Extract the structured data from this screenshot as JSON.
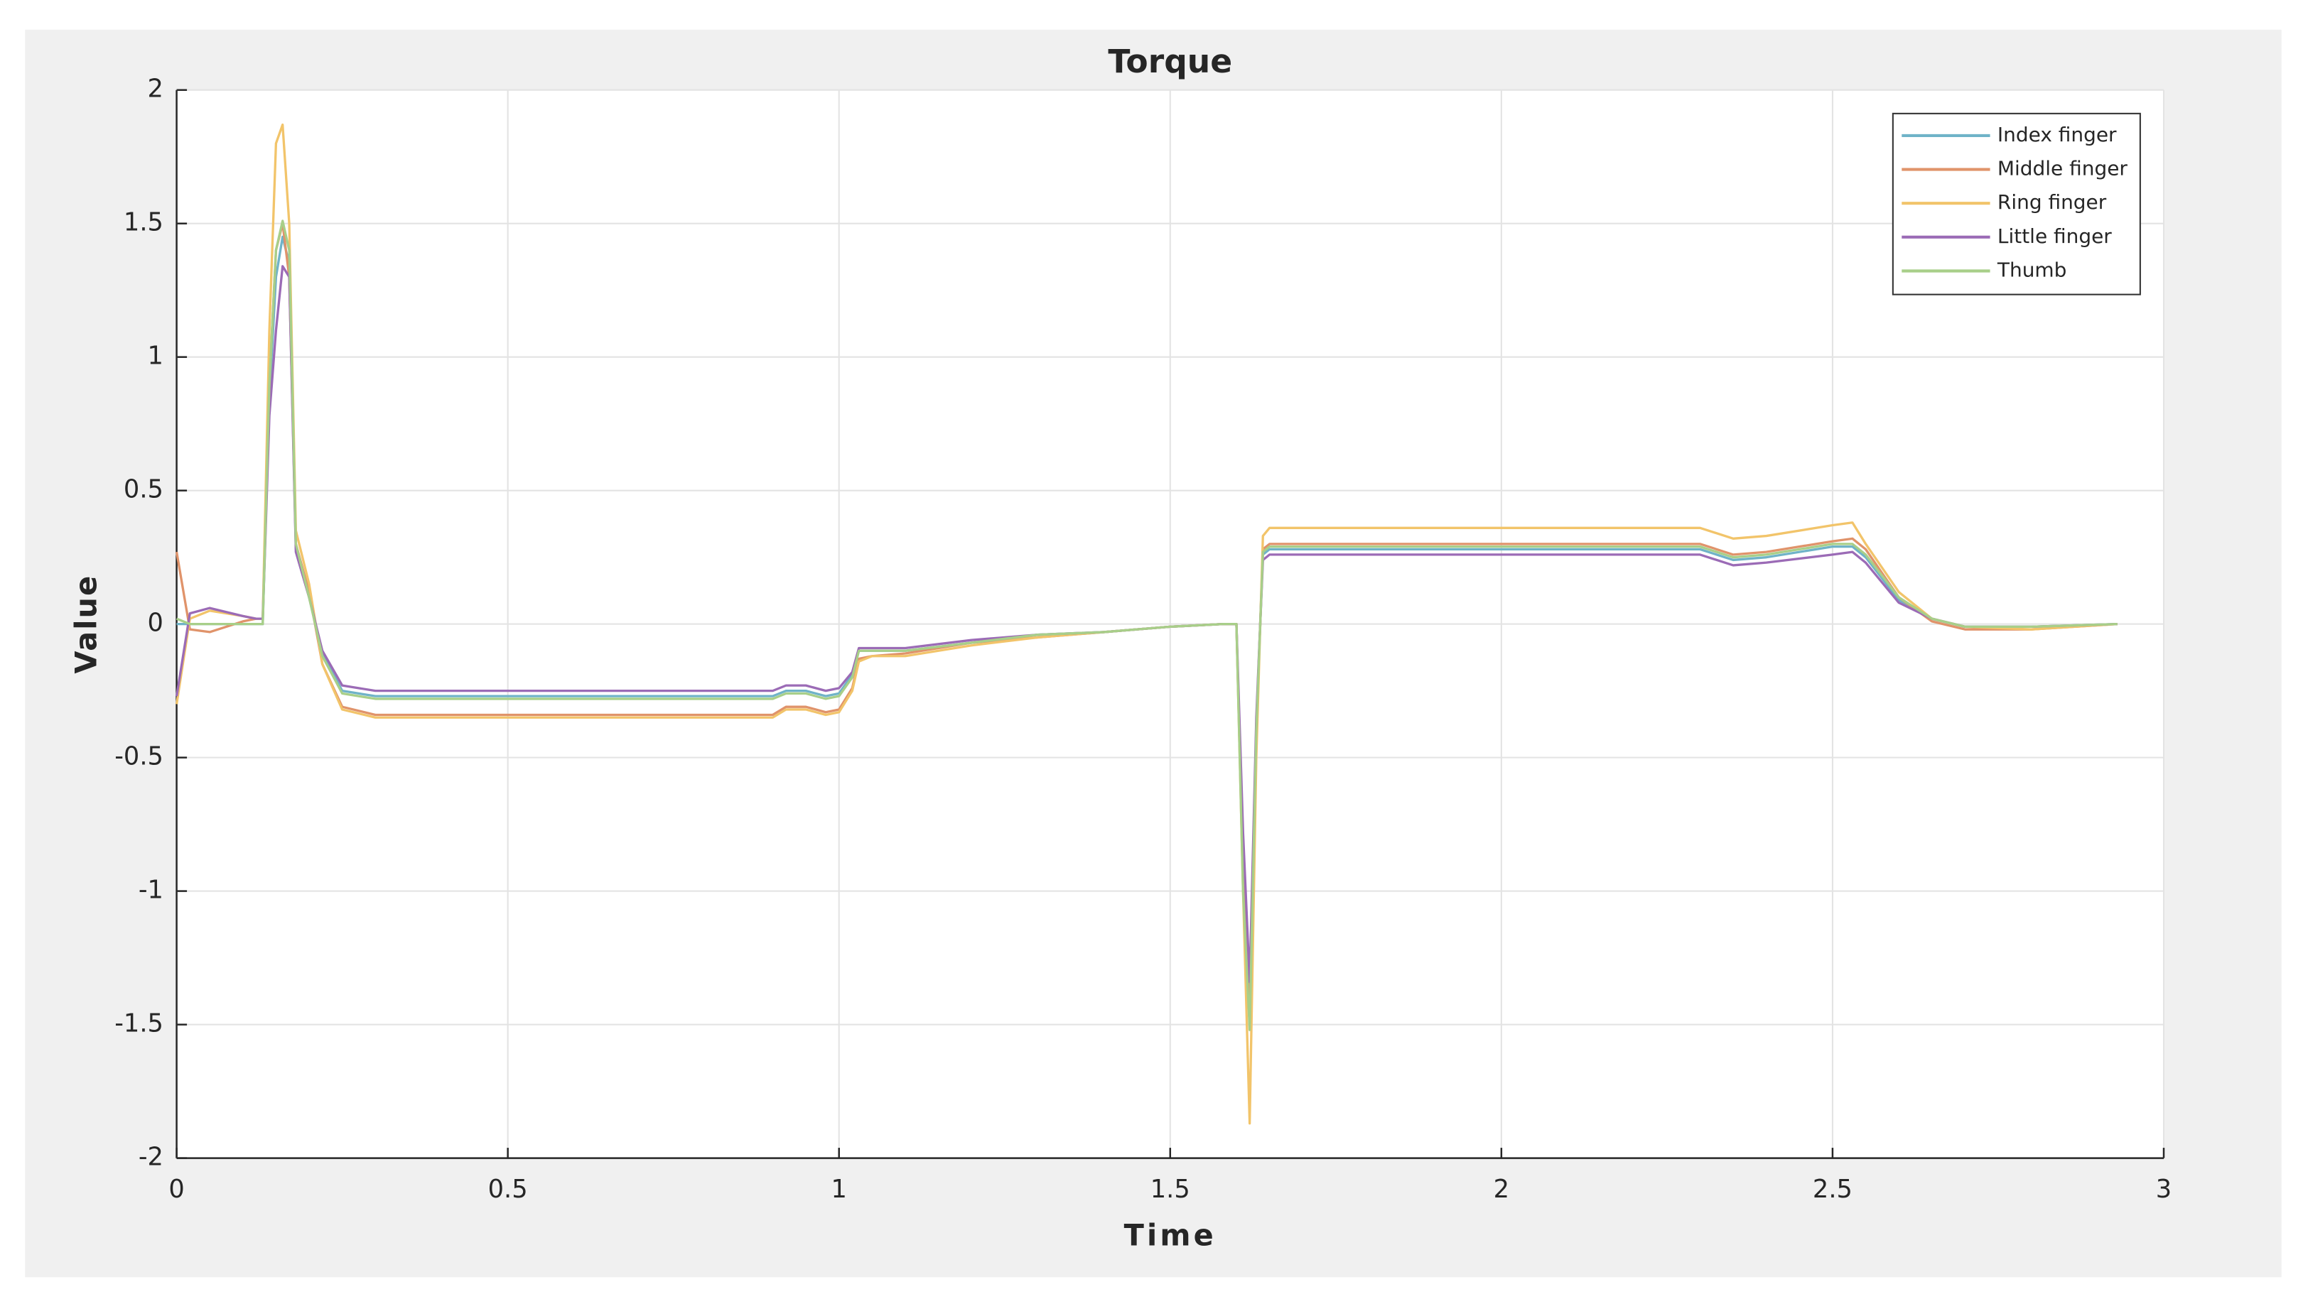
{
  "chart_data": {
    "type": "line",
    "title": "Torque",
    "x_label": "Time",
    "y_label": "Value",
    "x": [
      0,
      0.02,
      0.05,
      0.1,
      0.12,
      0.13,
      0.14,
      0.15,
      0.16,
      0.17,
      0.18,
      0.2,
      0.22,
      0.25,
      0.3,
      0.5,
      0.8,
      0.9,
      0.92,
      0.95,
      0.98,
      1.0,
      1.02,
      1.03,
      1.05,
      1.1,
      1.2,
      1.3,
      1.4,
      1.5,
      1.58,
      1.6,
      1.61,
      1.62,
      1.63,
      1.64,
      1.65,
      1.7,
      2.0,
      2.3,
      2.35,
      2.4,
      2.5,
      2.53,
      2.55,
      2.6,
      2.65,
      2.7,
      2.8,
      2.93
    ],
    "series": [
      {
        "name": "Index finger",
        "color": "#6fb3c8",
        "values": [
          0,
          0,
          0,
          0,
          0,
          0,
          0.85,
          1.3,
          1.45,
          1.35,
          0.28,
          0.1,
          -0.11,
          -0.25,
          -0.27,
          -0.27,
          -0.27,
          -0.27,
          -0.25,
          -0.25,
          -0.27,
          -0.26,
          -0.19,
          -0.1,
          -0.1,
          -0.1,
          -0.07,
          -0.04,
          -0.03,
          -0.01,
          0,
          0,
          -0.95,
          -1.45,
          -0.38,
          0.26,
          0.28,
          0.28,
          0.28,
          0.28,
          0.24,
          0.25,
          0.29,
          0.29,
          0.25,
          0.09,
          0.02,
          -0.01,
          -0.01,
          0
        ]
      },
      {
        "name": "Middle finger",
        "color": "#e0936a",
        "values": [
          0.27,
          -0.02,
          -0.03,
          0.01,
          0.02,
          0.02,
          0.9,
          1.4,
          1.5,
          1.3,
          0.3,
          0.12,
          -0.15,
          -0.31,
          -0.34,
          -0.34,
          -0.34,
          -0.34,
          -0.31,
          -0.31,
          -0.33,
          -0.32,
          -0.24,
          -0.13,
          -0.12,
          -0.11,
          -0.07,
          -0.05,
          -0.03,
          -0.01,
          0,
          0,
          -0.9,
          -1.5,
          -0.4,
          0.28,
          0.3,
          0.3,
          0.3,
          0.3,
          0.26,
          0.27,
          0.31,
          0.32,
          0.28,
          0.1,
          0.01,
          -0.02,
          -0.02,
          0
        ]
      },
      {
        "name": "Ring finger",
        "color": "#f2c46a",
        "values": [
          -0.3,
          0.02,
          0.05,
          0.03,
          0.02,
          0.02,
          1.1,
          1.8,
          1.87,
          1.5,
          0.35,
          0.15,
          -0.15,
          -0.32,
          -0.35,
          -0.35,
          -0.35,
          -0.35,
          -0.32,
          -0.32,
          -0.34,
          -0.33,
          -0.25,
          -0.14,
          -0.12,
          -0.12,
          -0.08,
          -0.05,
          -0.03,
          -0.01,
          0,
          0,
          -1.0,
          -1.87,
          -0.5,
          0.33,
          0.36,
          0.36,
          0.36,
          0.36,
          0.32,
          0.33,
          0.37,
          0.38,
          0.3,
          0.12,
          0.02,
          -0.01,
          -0.02,
          0
        ]
      },
      {
        "name": "Little finger",
        "color": "#9b6bb6",
        "values": [
          -0.27,
          0.04,
          0.06,
          0.03,
          0.02,
          0.02,
          0.78,
          1.1,
          1.34,
          1.3,
          0.27,
          0.1,
          -0.1,
          -0.23,
          -0.25,
          -0.25,
          -0.25,
          -0.25,
          -0.23,
          -0.23,
          -0.25,
          -0.24,
          -0.18,
          -0.09,
          -0.09,
          -0.09,
          -0.06,
          -0.04,
          -0.03,
          -0.01,
          0,
          0,
          -0.78,
          -1.34,
          -0.35,
          0.24,
          0.26,
          0.26,
          0.26,
          0.26,
          0.22,
          0.23,
          0.26,
          0.27,
          0.23,
          0.08,
          0.02,
          -0.01,
          -0.01,
          0
        ]
      },
      {
        "name": "Thumb",
        "color": "#a8cf89",
        "values": [
          0.02,
          0,
          0,
          0,
          0,
          0,
          0.9,
          1.4,
          1.51,
          1.4,
          0.3,
          0.1,
          -0.12,
          -0.26,
          -0.28,
          -0.28,
          -0.28,
          -0.28,
          -0.26,
          -0.26,
          -0.28,
          -0.27,
          -0.2,
          -0.1,
          -0.1,
          -0.1,
          -0.07,
          -0.04,
          -0.03,
          -0.01,
          0,
          0,
          -1.0,
          -1.52,
          -0.4,
          0.27,
          0.29,
          0.29,
          0.29,
          0.29,
          0.25,
          0.26,
          0.3,
          0.3,
          0.26,
          0.1,
          0.02,
          -0.01,
          -0.01,
          0
        ]
      }
    ],
    "xlim": [
      0,
      3
    ],
    "xticks": [
      0,
      0.5,
      1,
      1.5,
      2,
      2.5,
      3
    ],
    "ylim": [
      -2,
      2
    ],
    "yticks": [
      -2,
      -1.5,
      -1,
      -0.5,
      0,
      0.5,
      1,
      1.5,
      2
    ],
    "grid": true,
    "legend": "upper right"
  }
}
